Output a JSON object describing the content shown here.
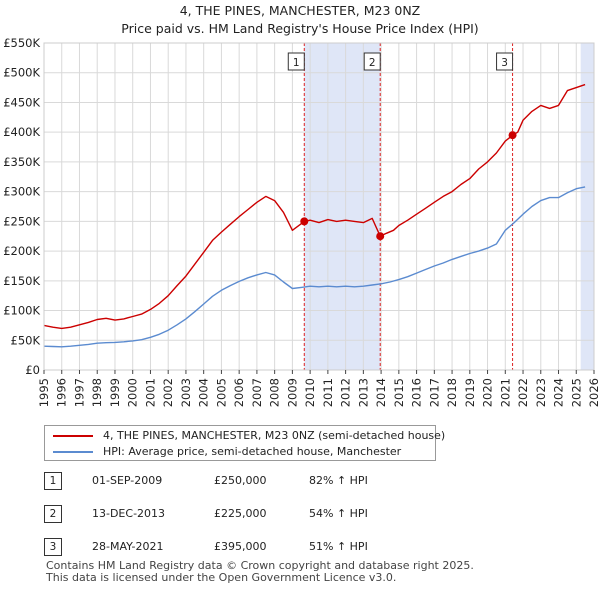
{
  "chart_data": {
    "type": "line",
    "title": "4, THE PINES, MANCHESTER, M23 0NZ",
    "subtitle": "Price paid vs. HM Land Registry's House Price Index (HPI)",
    "xlim": [
      1995,
      2026
    ],
    "ylim": [
      0,
      550000
    ],
    "x_ticks": [
      1995,
      1996,
      1997,
      1998,
      1999,
      2000,
      2001,
      2002,
      2003,
      2004,
      2005,
      2006,
      2007,
      2008,
      2009,
      2010,
      2011,
      2012,
      2013,
      2014,
      2015,
      2016,
      2017,
      2018,
      2019,
      2020,
      2021,
      2022,
      2023,
      2024,
      2025,
      2026
    ],
    "y_ticks": [
      {
        "value": 0,
        "label": "£0"
      },
      {
        "value": 50000,
        "label": "£50K"
      },
      {
        "value": 100000,
        "label": "£100K"
      },
      {
        "value": 150000,
        "label": "£150K"
      },
      {
        "value": 200000,
        "label": "£200K"
      },
      {
        "value": 250000,
        "label": "£250K"
      },
      {
        "value": 300000,
        "label": "£300K"
      },
      {
        "value": 350000,
        "label": "£350K"
      },
      {
        "value": 400000,
        "label": "£400K"
      },
      {
        "value": 450000,
        "label": "£450K"
      },
      {
        "value": 500000,
        "label": "£500K"
      },
      {
        "value": 550000,
        "label": "£550K"
      }
    ],
    "grid": true,
    "colors": {
      "property": "#cc0000",
      "hpi": "#5b8bd0",
      "marker_line": "#dd2222",
      "shade": "#dfe6f7",
      "grid": "#d9d9d9"
    },
    "series": [
      {
        "name": "4, THE PINES, MANCHESTER, M23 0NZ (semi-detached house)",
        "color": "#cc0000",
        "x": [
          1995.0,
          1995.5,
          1996.0,
          1996.5,
          1997.0,
          1997.5,
          1998.0,
          1998.5,
          1999.0,
          1999.5,
          2000.0,
          2000.5,
          2001.0,
          2001.5,
          2002.0,
          2002.5,
          2003.0,
          2003.5,
          2004.0,
          2004.5,
          2005.0,
          2005.5,
          2006.0,
          2006.5,
          2007.0,
          2007.5,
          2008.0,
          2008.5,
          2009.0,
          2009.67,
          2010.0,
          2010.5,
          2011.0,
          2011.5,
          2012.0,
          2012.5,
          2013.0,
          2013.5,
          2013.95,
          2014.3,
          2014.7,
          2015.0,
          2015.5,
          2016.0,
          2016.5,
          2017.0,
          2017.5,
          2018.0,
          2018.5,
          2019.0,
          2019.5,
          2020.0,
          2020.5,
          2021.0,
          2021.41,
          2021.7,
          2022.0,
          2022.5,
          2023.0,
          2023.5,
          2024.0,
          2024.5,
          2025.0,
          2025.5
        ],
        "values": [
          75000,
          72000,
          70000,
          72000,
          76000,
          80000,
          85000,
          87000,
          84000,
          86000,
          90000,
          94000,
          102000,
          112000,
          125000,
          142000,
          158000,
          178000,
          198000,
          218000,
          232000,
          245000,
          258000,
          270000,
          282000,
          292000,
          285000,
          265000,
          235000,
          250000,
          252000,
          248000,
          253000,
          250000,
          252000,
          250000,
          248000,
          255000,
          225000,
          230000,
          235000,
          243000,
          252000,
          262000,
          272000,
          282000,
          292000,
          300000,
          312000,
          322000,
          338000,
          350000,
          365000,
          385000,
          395000,
          400000,
          420000,
          435000,
          445000,
          440000,
          445000,
          470000,
          475000,
          480000
        ]
      },
      {
        "name": "HPI: Average price, semi-detached house, Manchester",
        "color": "#5b8bd0",
        "x": [
          1995.0,
          1995.5,
          1996.0,
          1996.5,
          1997.0,
          1997.5,
          1998.0,
          1998.5,
          1999.0,
          1999.5,
          2000.0,
          2000.5,
          2001.0,
          2001.5,
          2002.0,
          2002.5,
          2003.0,
          2003.5,
          2004.0,
          2004.5,
          2005.0,
          2005.5,
          2006.0,
          2006.5,
          2007.0,
          2007.5,
          2008.0,
          2008.5,
          2009.0,
          2009.5,
          2010.0,
          2010.5,
          2011.0,
          2011.5,
          2012.0,
          2012.5,
          2013.0,
          2013.5,
          2014.0,
          2014.5,
          2015.0,
          2015.5,
          2016.0,
          2016.5,
          2017.0,
          2017.5,
          2018.0,
          2018.5,
          2019.0,
          2019.5,
          2020.0,
          2020.5,
          2021.0,
          2021.5,
          2022.0,
          2022.5,
          2023.0,
          2023.5,
          2024.0,
          2024.5,
          2025.0,
          2025.5
        ],
        "values": [
          40000,
          39500,
          39000,
          40000,
          41500,
          43000,
          45000,
          46000,
          46500,
          47500,
          49000,
          51000,
          55000,
          60000,
          67000,
          76000,
          86000,
          98000,
          111000,
          124000,
          134000,
          142000,
          149000,
          155000,
          160000,
          164000,
          160000,
          148000,
          137000,
          139000,
          141000,
          140000,
          141000,
          140000,
          141000,
          140000,
          141000,
          143000,
          145000,
          148000,
          152000,
          157000,
          163000,
          169000,
          175000,
          180000,
          186000,
          191000,
          196000,
          200000,
          205000,
          212000,
          235000,
          248000,
          262000,
          275000,
          285000,
          290000,
          290000,
          298000,
          305000,
          308000
        ]
      }
    ],
    "markers": [
      {
        "label": "1",
        "x": 2009.67,
        "y": 250000
      },
      {
        "label": "2",
        "x": 2013.95,
        "y": 225000
      },
      {
        "label": "3",
        "x": 2021.41,
        "y": 395000
      }
    ],
    "shaded_ranges": [
      [
        2009.67,
        2013.95
      ],
      [
        2025.25,
        2026.0
      ]
    ]
  },
  "legend": {
    "property_label": "4, THE PINES, MANCHESTER, M23 0NZ (semi-detached house)",
    "hpi_label": "HPI: Average price, semi-detached house, Manchester"
  },
  "transactions": [
    {
      "num": "1",
      "date": "01-SEP-2009",
      "price": "£250,000",
      "hpi": "82% ↑ HPI"
    },
    {
      "num": "2",
      "date": "13-DEC-2013",
      "price": "£225,000",
      "hpi": "54% ↑ HPI"
    },
    {
      "num": "3",
      "date": "28-MAY-2021",
      "price": "£395,000",
      "hpi": "51% ↑ HPI"
    }
  ],
  "footer": {
    "line1": "Contains HM Land Registry data © Crown copyright and database right 2025.",
    "line2": "This data is licensed under the Open Government Licence v3.0."
  }
}
